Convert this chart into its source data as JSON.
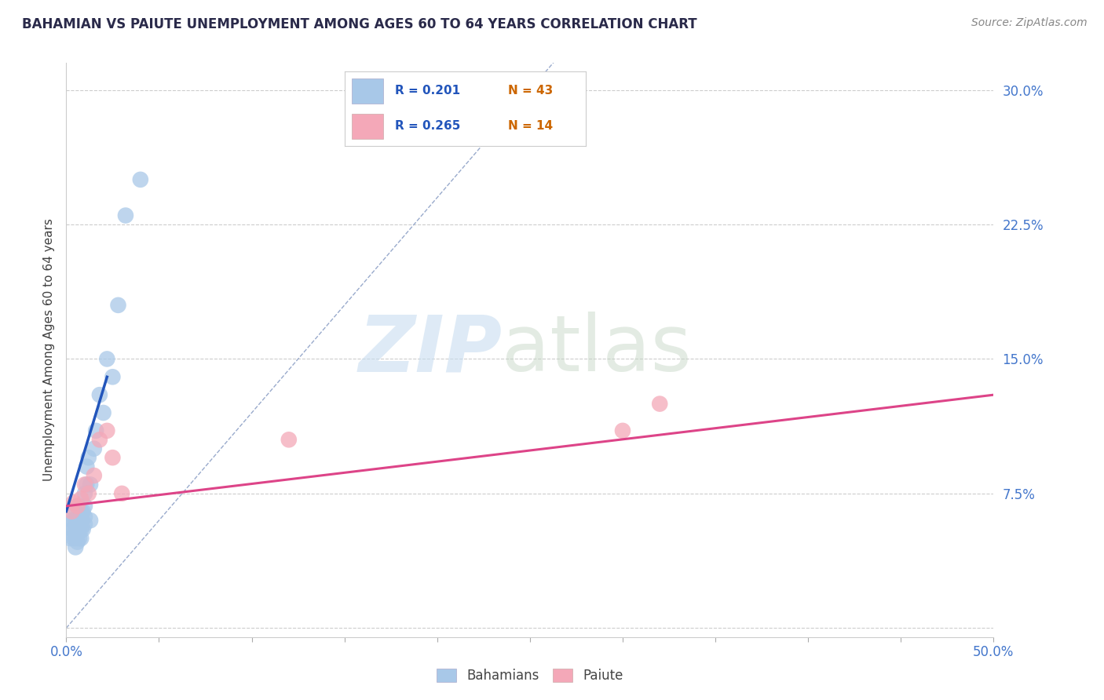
{
  "title": "BAHAMIAN VS PAIUTE UNEMPLOYMENT AMONG AGES 60 TO 64 YEARS CORRELATION CHART",
  "source": "Source: ZipAtlas.com",
  "ylabel": "Unemployment Among Ages 60 to 64 years",
  "xlim": [
    0,
    0.5
  ],
  "ylim": [
    -0.005,
    0.315
  ],
  "yticks": [
    0.0,
    0.075,
    0.15,
    0.225,
    0.3
  ],
  "yticklabels": [
    "",
    "7.5%",
    "15.0%",
    "22.5%",
    "30.0%"
  ],
  "xticks": [
    0.0,
    0.05,
    0.1,
    0.15,
    0.2,
    0.25,
    0.3,
    0.35,
    0.4,
    0.45,
    0.5
  ],
  "xticklabels": [
    "0.0%",
    "",
    "",
    "",
    "",
    "",
    "",
    "",
    "",
    "",
    "50.0%"
  ],
  "legend_R_blue": "R = 0.201",
  "legend_N_blue": "N = 43",
  "legend_R_pink": "R = 0.265",
  "legend_N_pink": "N = 14",
  "bahamian_color": "#a8c8e8",
  "paiute_color": "#f4a8b8",
  "blue_line_color": "#2255bb",
  "pink_line_color": "#dd4488",
  "diag_line_color": "#99aacc",
  "grid_color": "#cccccc",
  "background_color": "#ffffff",
  "bahamian_x": [
    0.002,
    0.003,
    0.003,
    0.004,
    0.004,
    0.004,
    0.005,
    0.005,
    0.005,
    0.005,
    0.005,
    0.006,
    0.006,
    0.006,
    0.006,
    0.006,
    0.007,
    0.007,
    0.007,
    0.008,
    0.008,
    0.008,
    0.008,
    0.009,
    0.009,
    0.01,
    0.01,
    0.01,
    0.01,
    0.011,
    0.011,
    0.012,
    0.013,
    0.013,
    0.015,
    0.016,
    0.018,
    0.02,
    0.022,
    0.025,
    0.028,
    0.032,
    0.04
  ],
  "bahamian_y": [
    0.05,
    0.055,
    0.06,
    0.05,
    0.055,
    0.06,
    0.045,
    0.05,
    0.055,
    0.06,
    0.065,
    0.048,
    0.052,
    0.057,
    0.062,
    0.068,
    0.05,
    0.055,
    0.06,
    0.05,
    0.055,
    0.06,
    0.065,
    0.055,
    0.065,
    0.058,
    0.062,
    0.068,
    0.075,
    0.08,
    0.09,
    0.095,
    0.08,
    0.06,
    0.1,
    0.11,
    0.13,
    0.12,
    0.15,
    0.14,
    0.18,
    0.23,
    0.25
  ],
  "paiute_x": [
    0.003,
    0.004,
    0.006,
    0.008,
    0.01,
    0.012,
    0.015,
    0.018,
    0.022,
    0.025,
    0.03,
    0.12,
    0.3,
    0.32
  ],
  "paiute_y": [
    0.065,
    0.07,
    0.068,
    0.072,
    0.08,
    0.075,
    0.085,
    0.105,
    0.11,
    0.095,
    0.075,
    0.105,
    0.11,
    0.125
  ],
  "blue_line_x": [
    0.0,
    0.022
  ],
  "blue_line_y": [
    0.065,
    0.14
  ],
  "pink_line_x": [
    0.0,
    0.5
  ],
  "pink_line_y": [
    0.068,
    0.13
  ]
}
